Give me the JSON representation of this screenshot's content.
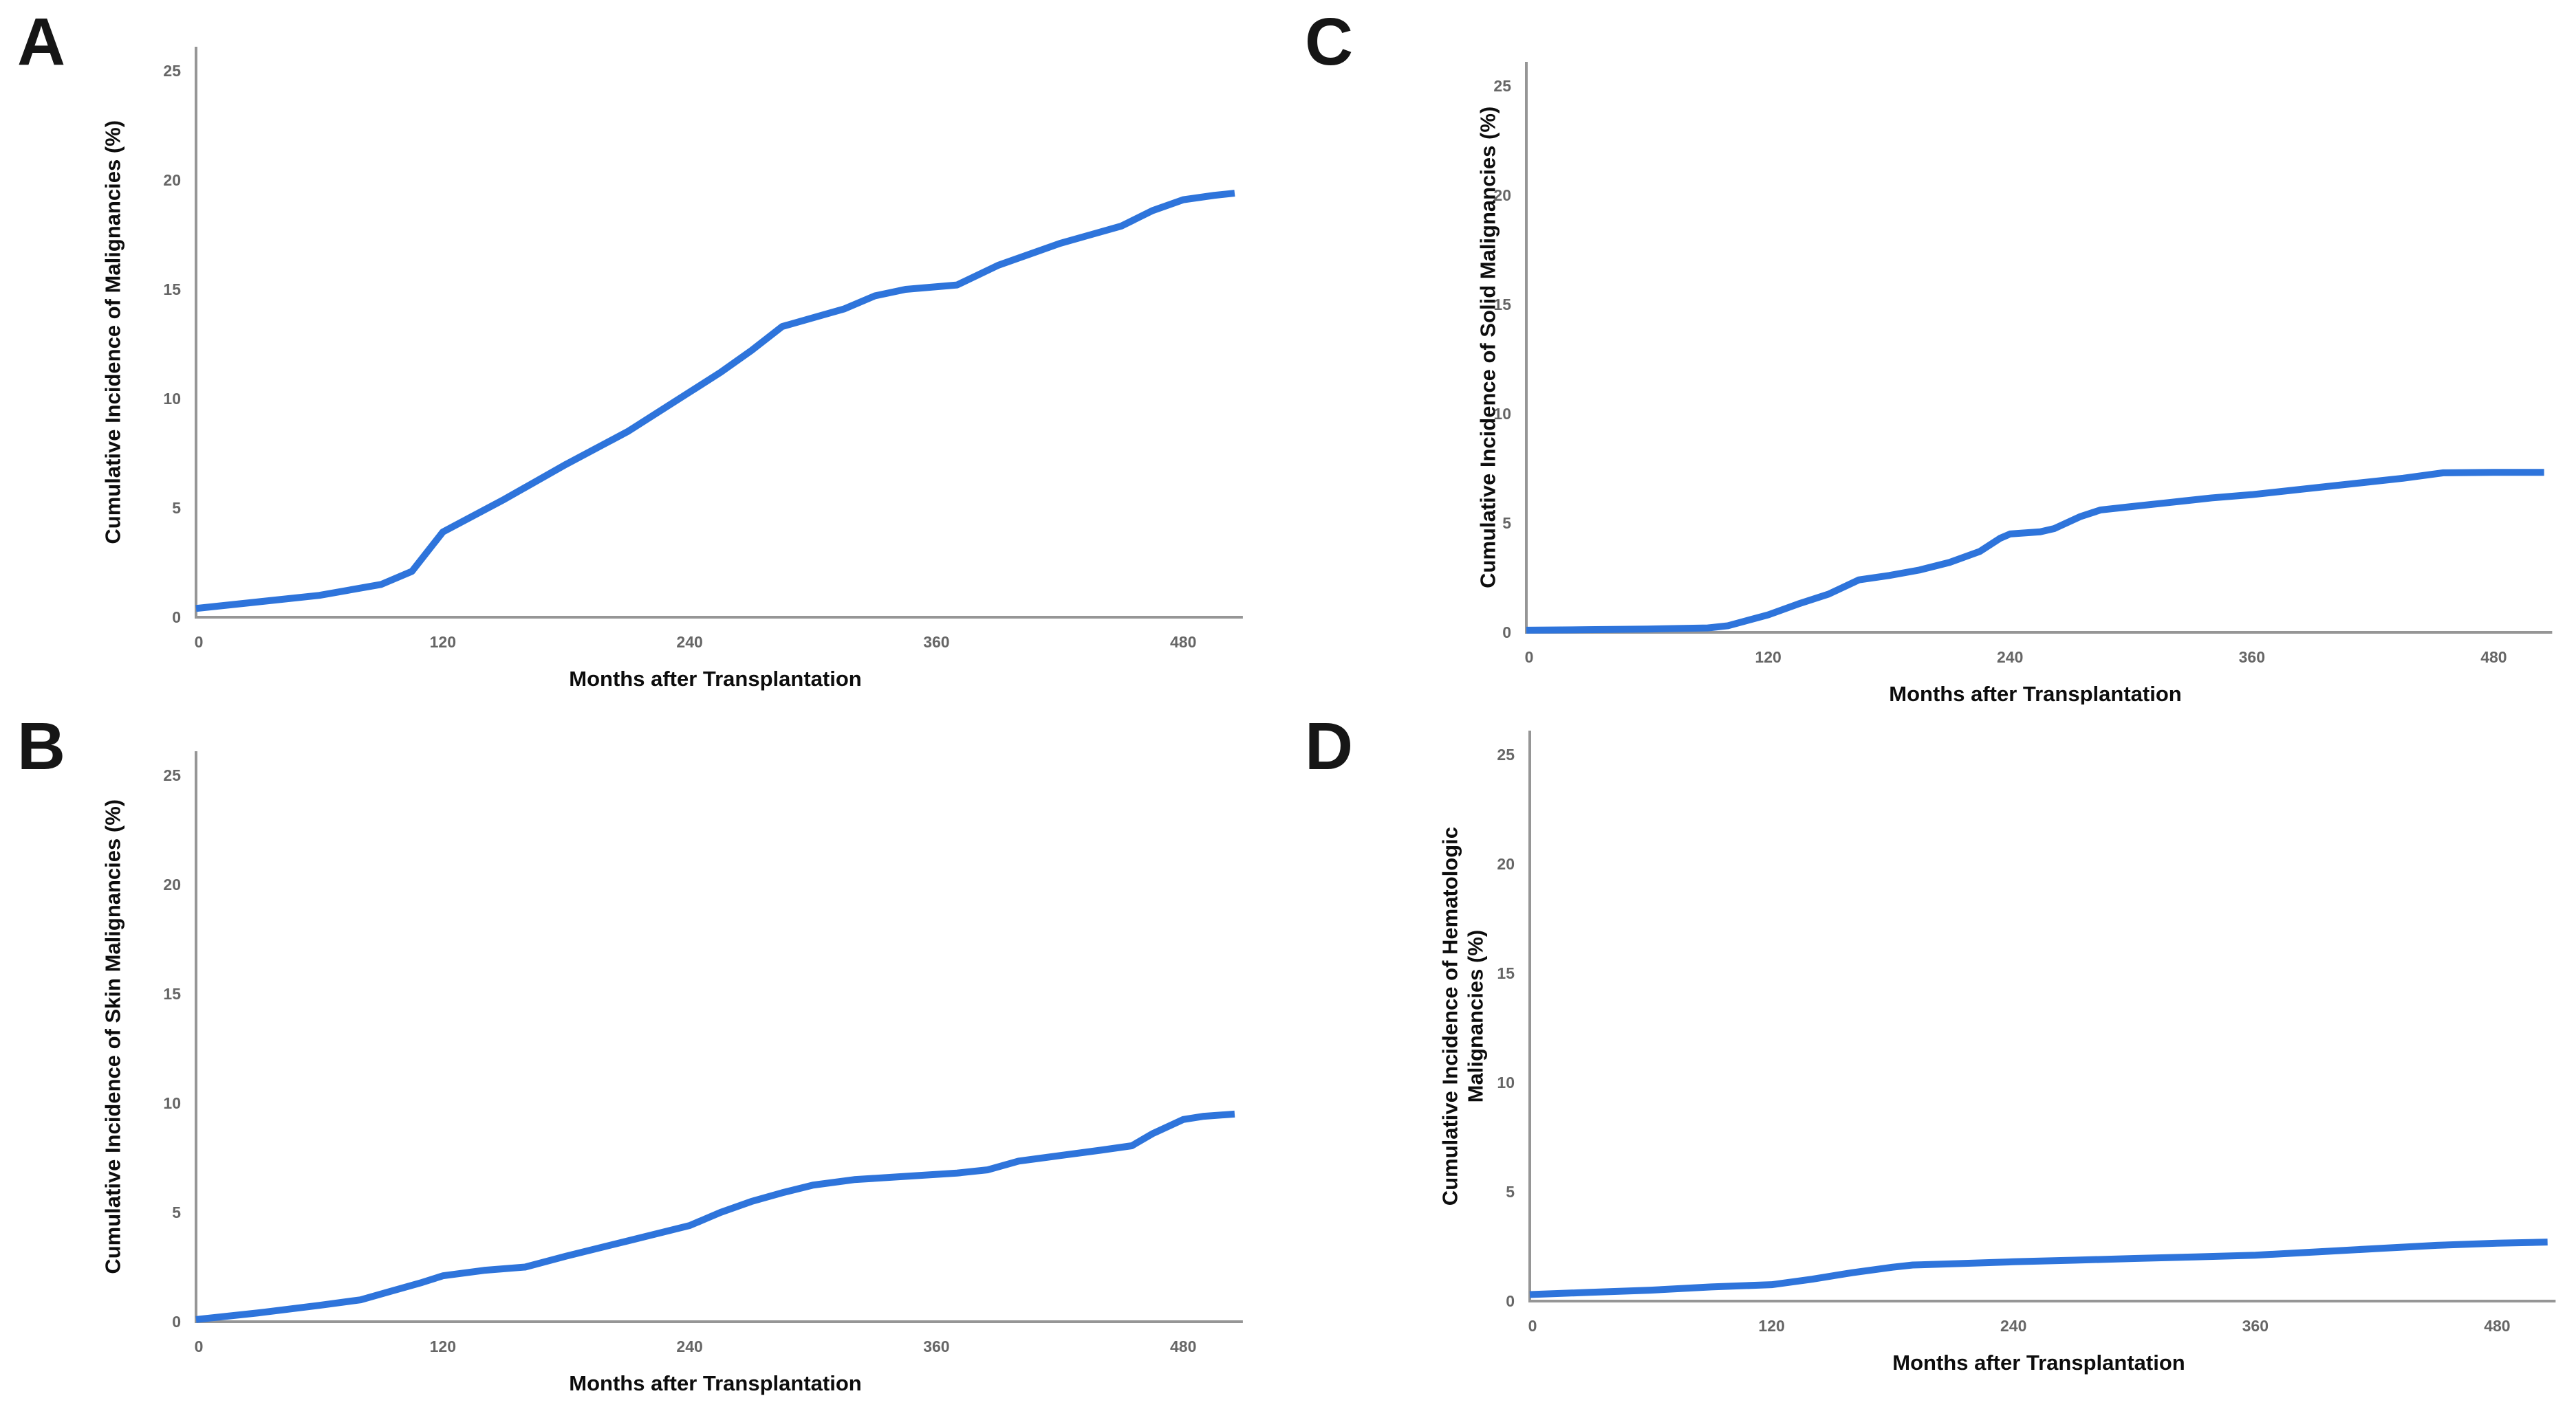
{
  "figure": {
    "background": "#ffffff",
    "line_color": "#2E74DB",
    "axis_color": "#969696",
    "tick_label_color": "#666666",
    "text_color": "#0d0d0d"
  },
  "chart_data": [
    {
      "id": "A",
      "type": "line",
      "panel_label": "A",
      "xlabel": "Months after Transplantation",
      "ylabel": "Cumulative Incidence of Malignancies (%)",
      "xlim": [
        0,
        505
      ],
      "ylim": [
        0,
        25
      ],
      "x_ticks": [
        0,
        120,
        240,
        360,
        480
      ],
      "y_ticks": [
        0,
        5,
        10,
        15,
        20,
        25
      ],
      "grid": false,
      "legend": "none",
      "series": [
        {
          "x": [
            0,
            30,
            60,
            90,
            105,
            120,
            150,
            180,
            210,
            225,
            240,
            255,
            270,
            285,
            300,
            315,
            330,
            345,
            370,
            390,
            405,
            420,
            435,
            450,
            465,
            480,
            495,
            505
          ],
          "y": [
            0.4,
            0.7,
            1.0,
            1.5,
            2.1,
            3.9,
            5.4,
            7.0,
            8.5,
            9.4,
            10.3,
            11.2,
            12.2,
            13.3,
            13.7,
            14.1,
            14.7,
            15.0,
            15.2,
            16.1,
            16.6,
            17.1,
            17.5,
            17.9,
            18.6,
            19.1,
            19.3,
            19.4
          ]
        }
      ]
    },
    {
      "id": "B",
      "type": "line",
      "panel_label": "B",
      "xlabel": "Months after Transplantation",
      "ylabel": "Cumulative Incidence of Skin Malignancies (%)",
      "xlim": [
        0,
        505
      ],
      "ylim": [
        0,
        25
      ],
      "x_ticks": [
        0,
        120,
        240,
        360,
        480
      ],
      "y_ticks": [
        0,
        5,
        10,
        15,
        20,
        25
      ],
      "grid": false,
      "legend": "none",
      "series": [
        {
          "x": [
            0,
            30,
            60,
            80,
            95,
            110,
            120,
            140,
            160,
            180,
            210,
            240,
            255,
            270,
            285,
            300,
            320,
            345,
            370,
            385,
            400,
            420,
            440,
            455,
            465,
            480,
            490,
            505
          ],
          "y": [
            0.1,
            0.4,
            0.75,
            1.0,
            1.4,
            1.8,
            2.1,
            2.35,
            2.5,
            3.0,
            3.7,
            4.4,
            5.0,
            5.5,
            5.9,
            6.25,
            6.5,
            6.65,
            6.8,
            6.95,
            7.35,
            7.6,
            7.85,
            8.05,
            8.6,
            9.25,
            9.4,
            9.5
          ]
        }
      ]
    },
    {
      "id": "C",
      "type": "line",
      "panel_label": "C",
      "xlabel": "Months after Transplantation",
      "ylabel": "Cumulative Incidence of Solid Malignancies (%)",
      "xlim": [
        0,
        505
      ],
      "ylim": [
        0,
        25
      ],
      "x_ticks": [
        0,
        120,
        240,
        360,
        480
      ],
      "y_ticks": [
        0,
        5,
        10,
        15,
        20,
        25
      ],
      "grid": false,
      "legend": "none",
      "series": [
        {
          "x": [
            0,
            30,
            60,
            90,
            100,
            120,
            135,
            150,
            165,
            180,
            195,
            210,
            225,
            235,
            240,
            255,
            262,
            275,
            285,
            300,
            320,
            340,
            360,
            385,
            410,
            435,
            455,
            480,
            505
          ],
          "y": [
            0.1,
            0.12,
            0.15,
            0.2,
            0.3,
            0.8,
            1.3,
            1.75,
            2.4,
            2.6,
            2.85,
            3.2,
            3.7,
            4.3,
            4.5,
            4.6,
            4.75,
            5.3,
            5.6,
            5.75,
            5.95,
            6.15,
            6.3,
            6.55,
            6.8,
            7.05,
            7.3,
            7.32,
            7.32
          ]
        }
      ]
    },
    {
      "id": "D",
      "type": "line",
      "panel_label": "D",
      "xlabel": "Months after Transplantation",
      "ylabel": "Cumulative Incidence of Hematologic\nMalignancies (%)",
      "xlim": [
        0,
        505
      ],
      "ylim": [
        0,
        25
      ],
      "x_ticks": [
        0,
        120,
        240,
        360,
        480
      ],
      "y_ticks": [
        0,
        5,
        10,
        15,
        20,
        25
      ],
      "grid": false,
      "legend": "none",
      "series": [
        {
          "x": [
            0,
            30,
            60,
            90,
            120,
            140,
            160,
            180,
            190,
            215,
            240,
            270,
            300,
            330,
            360,
            390,
            420,
            450,
            480,
            505
          ],
          "y": [
            0.3,
            0.4,
            0.5,
            0.65,
            0.75,
            1.0,
            1.3,
            1.55,
            1.65,
            1.72,
            1.8,
            1.87,
            1.95,
            2.02,
            2.1,
            2.25,
            2.4,
            2.55,
            2.65,
            2.7
          ]
        }
      ]
    }
  ]
}
